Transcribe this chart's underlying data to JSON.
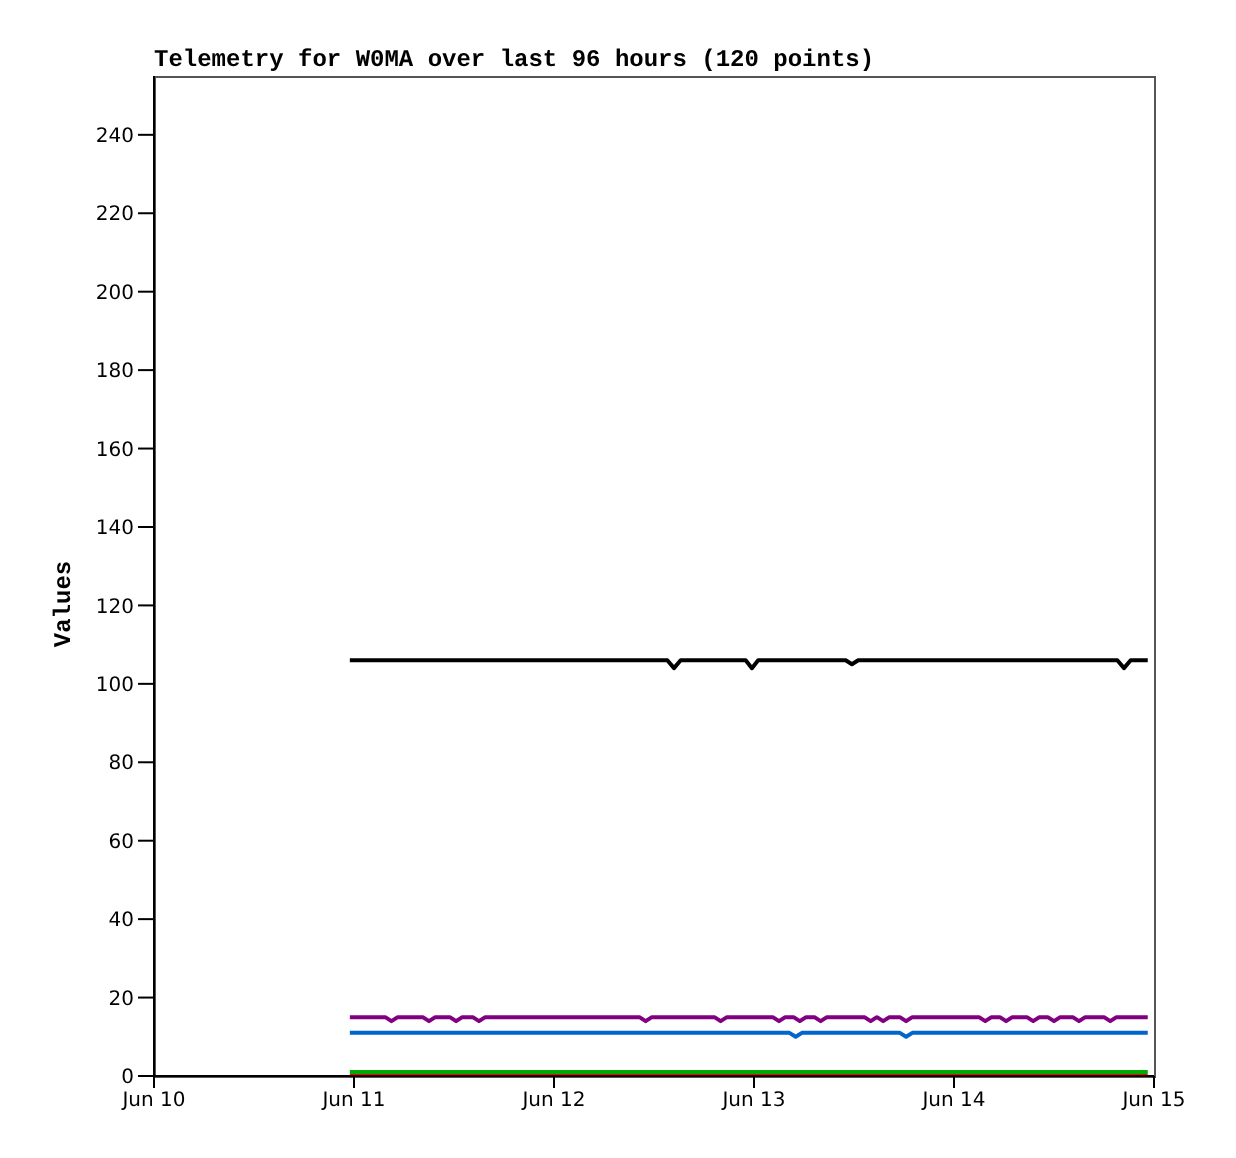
{
  "chart_data": {
    "type": "line",
    "title": "Telemetry for W0MA over last 96 hours (120 points)",
    "ylabel": "Values",
    "xlim": [
      "--06-10",
      "--06-15"
    ],
    "xticks": [
      {
        "value": "--06-10",
        "label": "Jun 10"
      },
      {
        "value": "--06-11",
        "label": "Jun 11"
      },
      {
        "value": "--06-12",
        "label": "Jun 12"
      },
      {
        "value": "--06-13",
        "label": "Jun 13"
      },
      {
        "value": "--06-14",
        "label": "Jun 14"
      },
      {
        "value": "--06-15",
        "label": "Jun 15"
      }
    ],
    "ylim": [
      0,
      255
    ],
    "yticks": [
      0,
      20,
      40,
      60,
      80,
      100,
      120,
      140,
      160,
      180,
      200,
      220,
      240
    ],
    "grid": false,
    "marker": "none",
    "line_style": "solid",
    "series": [
      {
        "color": "#000000",
        "x": [
          "--06-10T23:30",
          "--06-12T13:36",
          "--06-12T14:24",
          "--06-12T15:12",
          "--06-12T23:00",
          "--06-12T23:45",
          "--06-13T00:30",
          "--06-13T11:00",
          "--06-13T11:45",
          "--06-13T12:30",
          "--06-14T19:36",
          "--06-14T20:24",
          "--06-14T21:12",
          "--06-14T23:15"
        ],
        "values": [
          106,
          106,
          104,
          106,
          106,
          104,
          106,
          106,
          105,
          106,
          106,
          104,
          106,
          106
        ]
      },
      {
        "color": "#800080",
        "x": [
          "--06-10T23:30",
          "--06-11T03:45",
          "--06-11T04:30",
          "--06-11T05:15",
          "--06-11T08:15",
          "--06-11T09:00",
          "--06-11T09:45",
          "--06-11T11:30",
          "--06-11T12:15",
          "--06-11T13:00",
          "--06-11T14:15",
          "--06-11T15:00",
          "--06-11T15:45",
          "--06-12T10:15",
          "--06-12T11:00",
          "--06-12T11:45",
          "--06-12T19:15",
          "--06-12T20:00",
          "--06-12T20:45",
          "--06-13T02:15",
          "--06-13T03:00",
          "--06-13T03:45",
          "--06-13T04:45",
          "--06-13T05:30",
          "--06-13T06:15",
          "--06-13T07:15",
          "--06-13T08:00",
          "--06-13T08:45",
          "--06-13T13:15",
          "--06-13T14:00",
          "--06-13T14:45",
          "--06-13T15:30",
          "--06-13T16:15",
          "--06-13T17:30",
          "--06-13T18:15",
          "--06-13T19:00",
          "--06-14T03:00",
          "--06-14T03:45",
          "--06-14T04:30",
          "--06-14T05:30",
          "--06-14T06:15",
          "--06-14T07:00",
          "--06-14T08:45",
          "--06-14T09:30",
          "--06-14T10:15",
          "--06-14T11:15",
          "--06-14T12:00",
          "--06-14T12:45",
          "--06-14T14:15",
          "--06-14T15:00",
          "--06-14T15:45",
          "--06-14T18:00",
          "--06-14T18:45",
          "--06-14T19:30",
          "--06-14T23:15"
        ],
        "values": [
          15,
          15,
          14,
          15,
          15,
          14,
          15,
          15,
          14,
          15,
          15,
          14,
          15,
          15,
          14,
          15,
          15,
          14,
          15,
          15,
          14,
          15,
          15,
          14,
          15,
          15,
          14,
          15,
          15,
          14,
          15,
          14,
          15,
          15,
          14,
          15,
          15,
          14,
          15,
          15,
          14,
          15,
          15,
          14,
          15,
          15,
          14,
          15,
          15,
          14,
          15,
          15,
          14,
          15,
          15
        ]
      },
      {
        "color": "#0066cc",
        "x": [
          "--06-10T23:30",
          "--06-13T04:15",
          "--06-13T05:00",
          "--06-13T05:45",
          "--06-13T17:30",
          "--06-13T18:15",
          "--06-13T19:00",
          "--06-14T23:15"
        ],
        "values": [
          11,
          11,
          10,
          11,
          11,
          10,
          11,
          11
        ]
      },
      {
        "color": "#00aa00",
        "x": [
          "--06-10T23:30",
          "--06-14T23:15"
        ],
        "values": [
          1,
          1
        ]
      },
      {
        "color": "#ff0000",
        "x": [
          "--06-10T23:30",
          "--06-14T23:15"
        ],
        "values": [
          0,
          0
        ]
      }
    ]
  }
}
